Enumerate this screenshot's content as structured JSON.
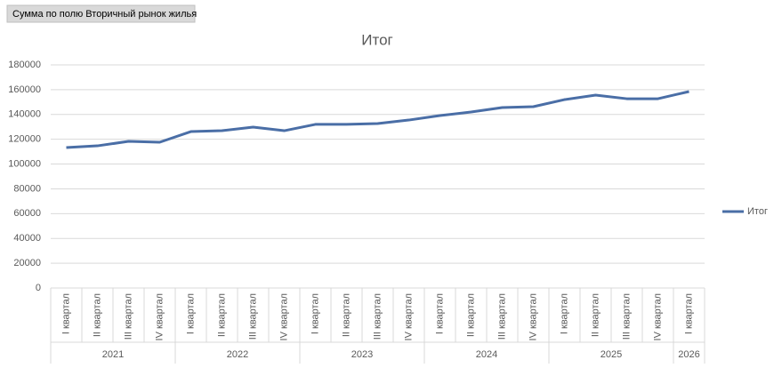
{
  "field_button": "Сумма по полю Вторичный рынок жилья",
  "chart_data": {
    "type": "line",
    "title": "Итог",
    "categories": [
      "I квартал",
      "II квартал",
      "III квартал",
      "IV квартал",
      "I квартал",
      "II квартал",
      "III квартал",
      "IV квартал",
      "I квартал",
      "II квартал",
      "III квартал",
      "IV квартал",
      "I квартал",
      "II квартал",
      "III квартал",
      "IV квартал",
      "I квартал",
      "II квартал",
      "III квартал",
      "IV квартал",
      "I квартал"
    ],
    "years": [
      "2021",
      null,
      null,
      null,
      "2022",
      null,
      null,
      null,
      "2023",
      null,
      null,
      null,
      "2024",
      null,
      null,
      null,
      "2025",
      null,
      null,
      null,
      "2026"
    ],
    "series": [
      {
        "name": "Итог",
        "color": "#4a6ea6",
        "values": [
          113300,
          114700,
          118300,
          117600,
          126200,
          126900,
          129800,
          126900,
          132000,
          132000,
          132700,
          135500,
          139100,
          142000,
          145600,
          146300,
          152000,
          155600,
          152700,
          152700,
          158500
        ]
      }
    ],
    "ylim": [
      0,
      180000
    ],
    "yticks": [
      0,
      20000,
      40000,
      60000,
      80000,
      100000,
      120000,
      140000,
      160000,
      180000
    ],
    "grid": true,
    "legend": "right"
  }
}
